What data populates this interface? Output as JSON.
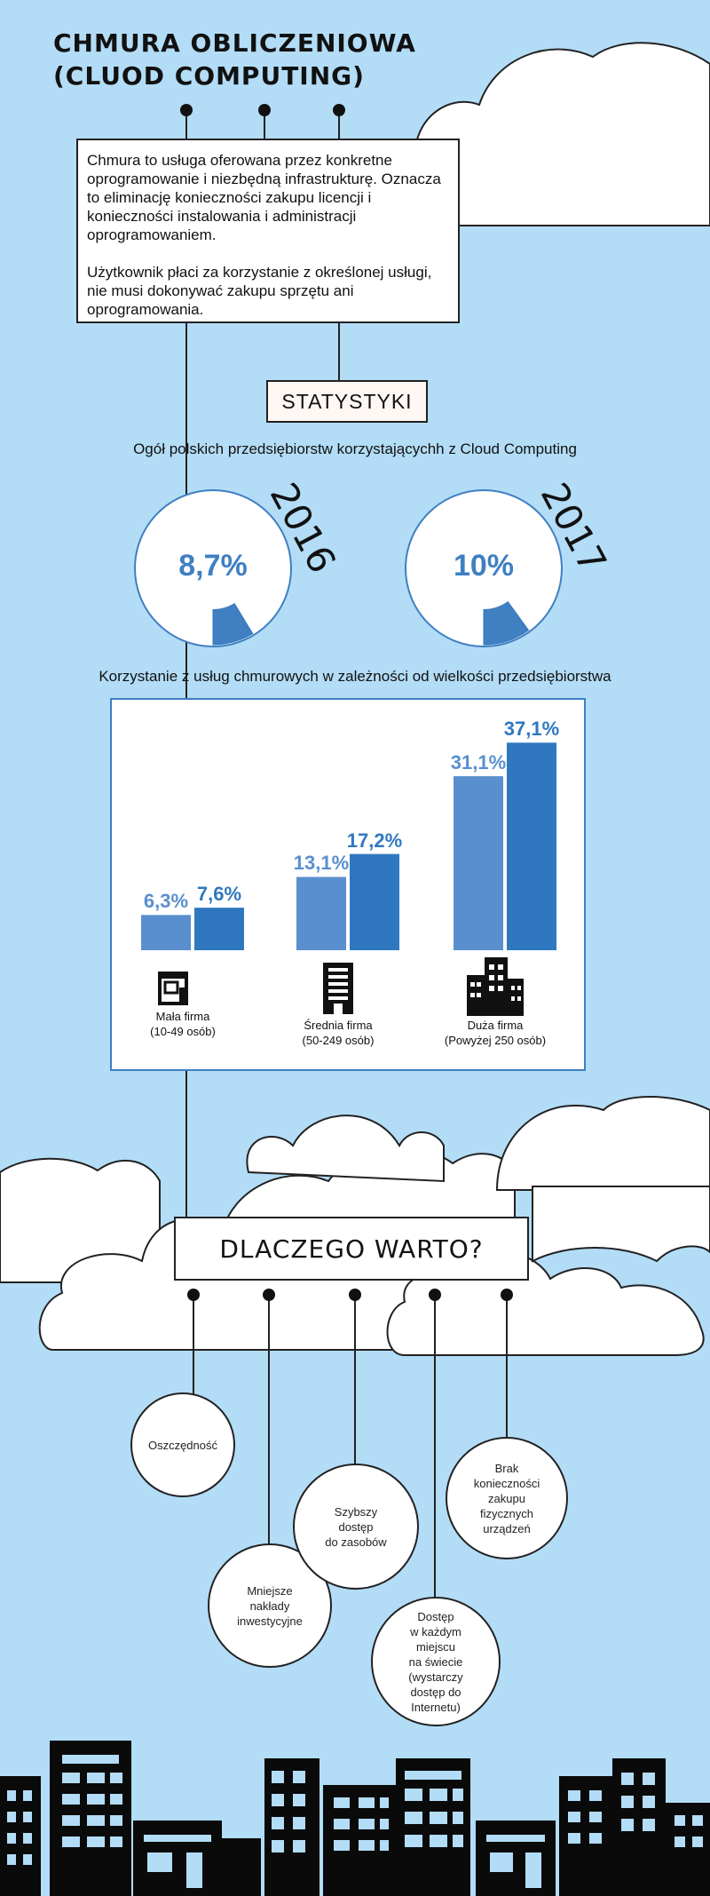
{
  "title": {
    "line1": "CHMURA OBLICZENIOWA",
    "line2": "(CLUOD COMPUTING)"
  },
  "intro": {
    "p1": "Chmura to usługa oferowana przez konkretne oprogramowanie i niezbędną infrastrukturę. Oznacza to eliminację konieczności zakupu licencji i konieczności instalowania i administracji oprogramowaniem.",
    "p2": "Użytkownik płaci za korzystanie z określonej usługi, nie musi dokonywać zakupu sprzętu ani oprogramowania."
  },
  "stats_heading": "STATYSTYKI",
  "colors": {
    "background": "#b3dcf6",
    "accent_light": "#5a8fcf",
    "accent_dark": "#2f78c0",
    "ink": "#111111"
  },
  "chart_data": [
    {
      "type": "pie",
      "title": "Ogół polskich przedsiębiorstw korzystającychh z Cloud Computing",
      "series": [
        {
          "name": "2016",
          "value_label": "8,7%",
          "value": 8.7
        },
        {
          "name": "2017",
          "value_label": "10%",
          "value": 10
        }
      ]
    },
    {
      "type": "bar",
      "title": "Korzystanie z usług chmurowych w zależności od wielkości przedsiębiorstwa",
      "categories": [
        {
          "label": "Mała firma",
          "sublabel": "(10-49 osób)",
          "icon": "small-shop-icon"
        },
        {
          "label": "Średnia firma",
          "sublabel": "(50-249 osób)",
          "icon": "office-building-icon"
        },
        {
          "label": "Duża firma",
          "sublabel": "(Powyżej 250 osób)",
          "icon": "city-buildings-icon"
        }
      ],
      "series": [
        {
          "values": [
            6.3,
            13.1,
            31.1
          ],
          "labels": [
            "6,3%",
            "13,1%",
            "31,1%"
          ],
          "color": "#5a8fcf"
        },
        {
          "values": [
            7.6,
            17.2,
            37.1
          ],
          "labels": [
            "7,6%",
            "17,2%",
            "37,1%"
          ],
          "color": "#2f78c0"
        }
      ],
      "ylim": [
        0,
        40
      ]
    }
  ],
  "why_heading": "DLACZEGO WARTO?",
  "benefits": [
    "Oszczędność",
    "Mniejsze\nnakłady\ninwestycyjne",
    "Szybszy\ndostęp\ndo zasobów",
    "Dostęp\nw każdym\nmiejscu\nna świecie\n(wystarczy\ndostęp do\nInternetu)",
    "Brak\nkonieczności\nzakupu\nfizycznych\nurządzeń"
  ]
}
